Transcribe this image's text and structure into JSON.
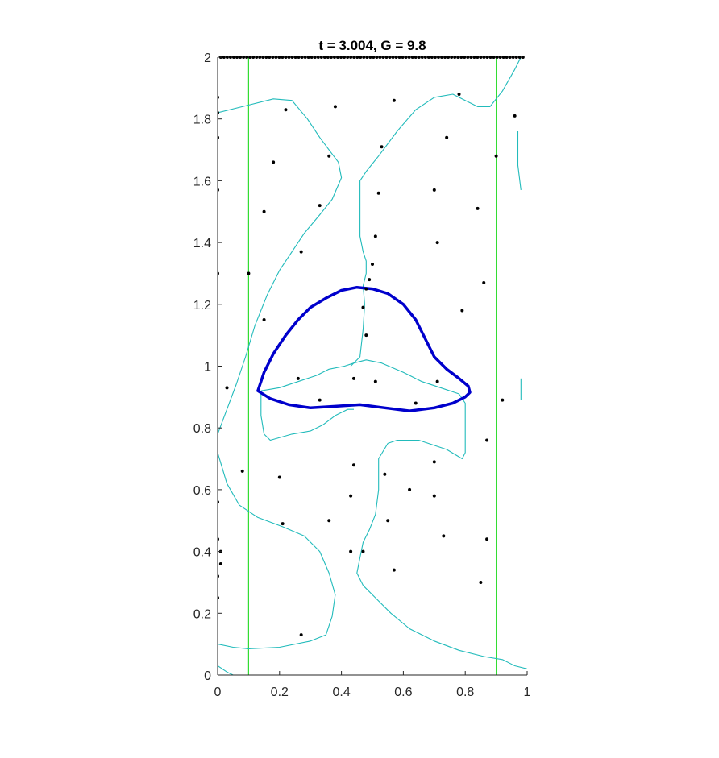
{
  "chart_data": {
    "type": "scatter",
    "title": "t = 3.004, G = 9.8",
    "xlabel": "",
    "ylabel": "",
    "xlim": [
      0,
      1
    ],
    "ylim": [
      0,
      2
    ],
    "x_ticks": [
      "0",
      "0.2",
      "0.4",
      "0.6",
      "0.8",
      "1"
    ],
    "y_ticks": [
      "0",
      "0.2",
      "0.4",
      "0.6",
      "0.8",
      "1",
      "1.2",
      "1.4",
      "1.6",
      "1.8",
      "2"
    ],
    "grid": false,
    "colors": {
      "interface": "#0000cc",
      "contour": "#22bbbb",
      "boundary": "#33dd33",
      "points": "#000000",
      "axis": "#262626"
    },
    "boundary_lines_x": [
      0.1,
      0.9
    ],
    "bubble_interface": [
      [
        0.13,
        0.92
      ],
      [
        0.15,
        0.98
      ],
      [
        0.18,
        1.04
      ],
      [
        0.22,
        1.1
      ],
      [
        0.26,
        1.15
      ],
      [
        0.3,
        1.19
      ],
      [
        0.35,
        1.22
      ],
      [
        0.4,
        1.245
      ],
      [
        0.45,
        1.255
      ],
      [
        0.5,
        1.25
      ],
      [
        0.55,
        1.235
      ],
      [
        0.6,
        1.2
      ],
      [
        0.64,
        1.15
      ],
      [
        0.67,
        1.09
      ],
      [
        0.7,
        1.03
      ],
      [
        0.74,
        0.99
      ],
      [
        0.78,
        0.96
      ],
      [
        0.81,
        0.935
      ],
      [
        0.815,
        0.915
      ],
      [
        0.8,
        0.9
      ],
      [
        0.76,
        0.88
      ],
      [
        0.7,
        0.865
      ],
      [
        0.62,
        0.855
      ],
      [
        0.54,
        0.865
      ],
      [
        0.46,
        0.875
      ],
      [
        0.38,
        0.87
      ],
      [
        0.3,
        0.865
      ],
      [
        0.23,
        0.875
      ],
      [
        0.17,
        0.895
      ],
      [
        0.13,
        0.92
      ]
    ],
    "contours": [
      [
        [
          0.0,
          1.82
        ],
        [
          0.08,
          1.84
        ],
        [
          0.18,
          1.865
        ],
        [
          0.24,
          1.86
        ],
        [
          0.29,
          1.8
        ],
        [
          0.33,
          1.74
        ],
        [
          0.36,
          1.7
        ],
        [
          0.39,
          1.66
        ],
        [
          0.4,
          1.61
        ],
        [
          0.37,
          1.54
        ],
        [
          0.33,
          1.49
        ],
        [
          0.28,
          1.43
        ],
        [
          0.24,
          1.37
        ],
        [
          0.2,
          1.31
        ],
        [
          0.16,
          1.23
        ],
        [
          0.12,
          1.13
        ],
        [
          0.09,
          1.03
        ],
        [
          0.06,
          0.94
        ],
        [
          0.03,
          0.86
        ],
        [
          0.0,
          0.78
        ]
      ],
      [
        [
          0.0,
          0.72
        ],
        [
          0.03,
          0.62
        ],
        [
          0.07,
          0.55
        ],
        [
          0.13,
          0.51
        ],
        [
          0.21,
          0.48
        ],
        [
          0.28,
          0.45
        ],
        [
          0.33,
          0.4
        ],
        [
          0.36,
          0.33
        ],
        [
          0.38,
          0.26
        ],
        [
          0.37,
          0.19
        ],
        [
          0.35,
          0.13
        ],
        [
          0.3,
          0.11
        ],
        [
          0.2,
          0.09
        ],
        [
          0.1,
          0.085
        ],
        [
          0.05,
          0.09
        ],
        [
          0.0,
          0.1
        ]
      ],
      [
        [
          0.43,
          1.0
        ],
        [
          0.46,
          1.03
        ],
        [
          0.47,
          1.12
        ],
        [
          0.475,
          1.2
        ],
        [
          0.47,
          1.26
        ],
        [
          0.48,
          1.3
        ],
        [
          0.48,
          1.34
        ],
        [
          0.47,
          1.37
        ],
        [
          0.46,
          1.42
        ],
        [
          0.46,
          1.48
        ],
        [
          0.46,
          1.55
        ],
        [
          0.46,
          1.6
        ],
        [
          0.48,
          1.63
        ],
        [
          0.52,
          1.68
        ],
        [
          0.58,
          1.76
        ],
        [
          0.64,
          1.83
        ],
        [
          0.7,
          1.87
        ],
        [
          0.76,
          1.88
        ],
        [
          0.8,
          1.86
        ],
        [
          0.84,
          1.84
        ],
        [
          0.88,
          1.84
        ],
        [
          0.92,
          1.89
        ],
        [
          0.96,
          1.96
        ],
        [
          0.98,
          2.0
        ]
      ],
      [
        [
          0.14,
          0.92
        ],
        [
          0.2,
          0.93
        ],
        [
          0.26,
          0.95
        ],
        [
          0.32,
          0.97
        ],
        [
          0.36,
          0.99
        ],
        [
          0.41,
          1.0
        ],
        [
          0.44,
          1.01
        ],
        [
          0.48,
          1.02
        ],
        [
          0.53,
          1.01
        ],
        [
          0.6,
          0.98
        ],
        [
          0.66,
          0.95
        ],
        [
          0.72,
          0.93
        ],
        [
          0.78,
          0.91
        ],
        [
          0.8,
          0.88
        ],
        [
          0.8,
          0.83
        ],
        [
          0.8,
          0.76
        ],
        [
          0.8,
          0.72
        ],
        [
          0.79,
          0.7
        ],
        [
          0.74,
          0.73
        ],
        [
          0.65,
          0.76
        ],
        [
          0.58,
          0.76
        ],
        [
          0.55,
          0.75
        ],
        [
          0.52,
          0.7
        ],
        [
          0.52,
          0.6
        ],
        [
          0.51,
          0.52
        ],
        [
          0.49,
          0.47
        ],
        [
          0.47,
          0.43
        ],
        [
          0.46,
          0.38
        ],
        [
          0.45,
          0.33
        ],
        [
          0.47,
          0.29
        ],
        [
          0.51,
          0.25
        ],
        [
          0.56,
          0.2
        ],
        [
          0.62,
          0.15
        ],
        [
          0.7,
          0.11
        ],
        [
          0.78,
          0.08
        ],
        [
          0.86,
          0.06
        ],
        [
          0.92,
          0.05
        ],
        [
          0.96,
          0.03
        ],
        [
          1.0,
          0.02
        ]
      ],
      [
        [
          0.14,
          0.91
        ],
        [
          0.14,
          0.84
        ],
        [
          0.15,
          0.78
        ],
        [
          0.17,
          0.76
        ],
        [
          0.24,
          0.78
        ],
        [
          0.3,
          0.79
        ],
        [
          0.34,
          0.81
        ],
        [
          0.38,
          0.84
        ],
        [
          0.42,
          0.86
        ],
        [
          0.44,
          0.86
        ]
      ],
      [
        [
          0.0,
          0.03
        ],
        [
          0.03,
          0.01
        ],
        [
          0.05,
          0.0
        ]
      ],
      [
        [
          0.97,
          1.76
        ],
        [
          0.97,
          1.65
        ],
        [
          0.98,
          1.57
        ]
      ],
      [
        [
          0.98,
          0.96
        ],
        [
          0.98,
          0.89
        ]
      ]
    ],
    "points": [
      [
        0.0,
        1.87
      ],
      [
        0.0,
        1.82
      ],
      [
        0.0,
        1.74
      ],
      [
        0.0,
        1.57
      ],
      [
        0.0,
        1.3
      ],
      [
        0.0,
        0.56
      ],
      [
        0.0,
        0.44
      ],
      [
        0.01,
        0.4
      ],
      [
        0.01,
        0.36
      ],
      [
        0.0,
        0.32
      ],
      [
        0.0,
        0.25
      ],
      [
        0.22,
        1.83
      ],
      [
        0.38,
        1.84
      ],
      [
        0.57,
        1.86
      ],
      [
        0.78,
        1.88
      ],
      [
        0.96,
        1.81
      ],
      [
        0.18,
        1.66
      ],
      [
        0.36,
        1.68
      ],
      [
        0.53,
        1.71
      ],
      [
        0.74,
        1.74
      ],
      [
        0.9,
        1.68
      ],
      [
        0.15,
        1.5
      ],
      [
        0.33,
        1.52
      ],
      [
        0.52,
        1.56
      ],
      [
        0.7,
        1.57
      ],
      [
        0.84,
        1.51
      ],
      [
        0.27,
        1.37
      ],
      [
        0.51,
        1.42
      ],
      [
        0.71,
        1.4
      ],
      [
        0.1,
        1.3
      ],
      [
        0.5,
        1.33
      ],
      [
        0.49,
        1.28
      ],
      [
        0.48,
        1.25
      ],
      [
        0.86,
        1.27
      ],
      [
        0.47,
        1.19
      ],
      [
        0.79,
        1.18
      ],
      [
        0.15,
        1.15
      ],
      [
        0.48,
        1.1
      ],
      [
        0.26,
        0.96
      ],
      [
        0.44,
        0.96
      ],
      [
        0.51,
        0.95
      ],
      [
        0.71,
        0.95
      ],
      [
        0.03,
        0.93
      ],
      [
        0.33,
        0.89
      ],
      [
        0.64,
        0.88
      ],
      [
        0.92,
        0.89
      ],
      [
        0.87,
        0.76
      ],
      [
        0.44,
        0.68
      ],
      [
        0.7,
        0.69
      ],
      [
        0.08,
        0.66
      ],
      [
        0.2,
        0.64
      ],
      [
        0.54,
        0.65
      ],
      [
        0.43,
        0.58
      ],
      [
        0.62,
        0.6
      ],
      [
        0.7,
        0.58
      ],
      [
        0.36,
        0.5
      ],
      [
        0.55,
        0.5
      ],
      [
        0.21,
        0.49
      ],
      [
        0.73,
        0.45
      ],
      [
        0.87,
        0.44
      ],
      [
        0.43,
        0.4
      ],
      [
        0.47,
        0.4
      ],
      [
        0.57,
        0.34
      ],
      [
        0.85,
        0.3
      ],
      [
        0.27,
        0.13
      ]
    ],
    "top_row_points_y": 2.0
  }
}
